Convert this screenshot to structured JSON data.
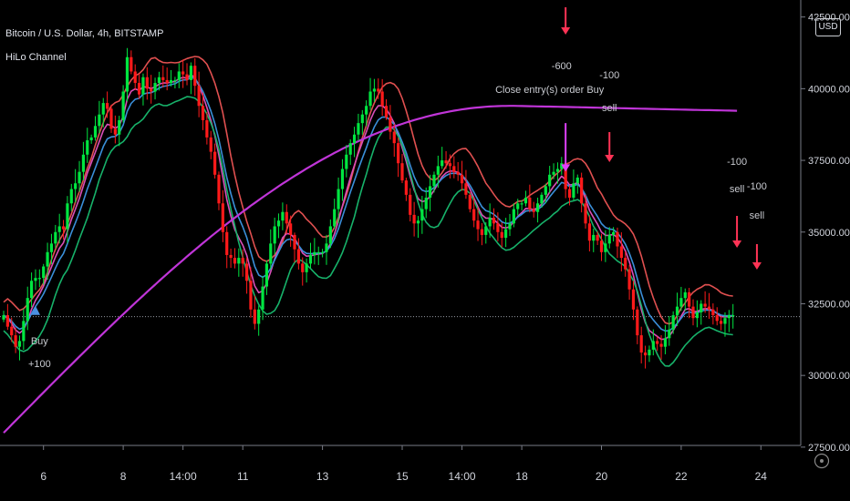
{
  "header": {
    "symbol_line": "Bitcoin / U.S. Dollar, 4h, BITSTAMP",
    "indicator": "HiLo Channel"
  },
  "currency_button": "USD",
  "colors": {
    "up": "#00e640",
    "down": "#ff1a1a",
    "magenta": "#c035d8",
    "red_ma": "#e05050",
    "pink_ma": "#d94fb8",
    "blue_ma": "#3a8fd9",
    "green_ma": "#17b26a",
    "signal_red": "#ff3355",
    "signal_pink": "#e040fb",
    "signal_blue": "#4a90e2"
  },
  "chart_data": {
    "type": "candlestick",
    "ylim": [
      27000,
      42600
    ],
    "y_ticks": [
      27500,
      30000,
      32500,
      35000,
      37500,
      40000,
      42500
    ],
    "y_tick_labels": [
      "27500.00",
      "30000.00",
      "32500.00",
      "35000.00",
      "37500.00",
      "40000.00",
      "42500.00"
    ],
    "x_ticks": [
      {
        "i": 10,
        "label": "6"
      },
      {
        "i": 30,
        "label": "8"
      },
      {
        "i": 45,
        "label": "14:00"
      },
      {
        "i": 60,
        "label": "11"
      },
      {
        "i": 80,
        "label": "13"
      },
      {
        "i": 100,
        "label": "15"
      },
      {
        "i": 115,
        "label": "14:00"
      },
      {
        "i": 130,
        "label": "18"
      },
      {
        "i": 150,
        "label": "20"
      },
      {
        "i": 170,
        "label": "22"
      },
      {
        "i": 190,
        "label": "24"
      }
    ],
    "current_price_line": 32050,
    "close": [
      32100,
      31700,
      31400,
      31000,
      31200,
      31900,
      32700,
      33300,
      33400,
      33400,
      33800,
      34300,
      34600,
      35000,
      35200,
      35100,
      36000,
      36500,
      36700,
      37100,
      37700,
      38200,
      38300,
      38700,
      39100,
      39500,
      39300,
      38600,
      38400,
      38900,
      39900,
      41100,
      40600,
      40200,
      39800,
      40400,
      40000,
      39900,
      40200,
      40400,
      40300,
      40200,
      40300,
      40300,
      40600,
      40500,
      40300,
      40800,
      40100,
      39400,
      38900,
      38300,
      37800,
      37000,
      36000,
      35000,
      34200,
      34100,
      33900,
      34100,
      33900,
      33300,
      32300,
      31800,
      32300,
      33100,
      33900,
      34600,
      35200,
      35400,
      35700,
      35300,
      34900,
      34400,
      33900,
      33600,
      33900,
      34200,
      34300,
      34300,
      34300,
      34600,
      35200,
      35800,
      36500,
      37200,
      37700,
      38100,
      38400,
      38800,
      39100,
      39400,
      39900,
      40000,
      39900,
      39400,
      39000,
      38500,
      38100,
      37400,
      36800,
      36300,
      35600,
      35300,
      35400,
      35800,
      36200,
      36600,
      37000,
      37300,
      37500,
      37400,
      37300,
      37100,
      37000,
      36700,
      36300,
      35800,
      35400,
      35100,
      34900,
      35200,
      35500,
      35300,
      35000,
      34800,
      35100,
      35300,
      35800,
      36000,
      36000,
      36200,
      35800,
      35700,
      36000,
      36300,
      36600,
      37000,
      37100,
      37200,
      37400,
      36500,
      36200,
      36700,
      36900,
      36000,
      35300,
      34700,
      34900,
      34700,
      34300,
      34600,
      34900,
      35000,
      34500,
      34100,
      33700,
      33000,
      32300,
      31400,
      30800,
      30700,
      30900,
      31200,
      31100,
      31000,
      31300,
      31600,
      32100,
      32400,
      32700,
      32900,
      32400,
      32000,
      32200,
      32500,
      32400,
      32300,
      32100,
      31900,
      31800,
      32000,
      32100,
      32100
    ]
  },
  "annotations": {
    "buy": [
      "Buy",
      "+100"
    ],
    "close_entry": [
      "-600",
      "Close entry(s) order Buy"
    ],
    "sell1": [
      "-100",
      "sell"
    ],
    "sell2": [
      "-100",
      "sell"
    ],
    "sell3": [
      "-100",
      "sell"
    ]
  }
}
